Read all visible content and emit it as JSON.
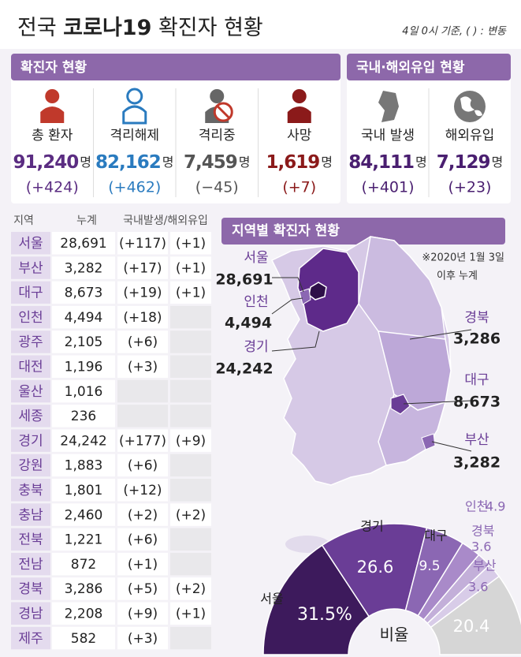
{
  "header": {
    "title_pre": "전국",
    "title_bold": "코로나19",
    "title_post": "확진자 현황",
    "subtitle": "4일 0시 기준, ( ) : 변동"
  },
  "summary": {
    "unit": "명",
    "panels": [
      {
        "title": "확진자 현황",
        "items": [
          {
            "label": "총 환자",
            "value": "91,240",
            "change": "(+424)",
            "color": "#5b2d82"
          },
          {
            "label": "격리해제",
            "value": "82,162",
            "change": "(+462)",
            "color": "#2a7bbf"
          },
          {
            "label": "격리중",
            "value": "7,459",
            "change": "(−45)",
            "color": "#555555"
          },
          {
            "label": "사망",
            "value": "1,619",
            "change": "(+7)",
            "color": "#8b1a1a"
          }
        ]
      },
      {
        "title": "국내·해외유입 현황",
        "items": [
          {
            "label": "국내 발생",
            "value": "84,111",
            "change": "(+401)",
            "color": "#4a1f70"
          },
          {
            "label": "해외유입",
            "value": "7,129",
            "change": "(+23)",
            "color": "#4a1f70"
          }
        ]
      }
    ]
  },
  "table": {
    "headers": [
      "지역",
      "누계",
      "국내발생/해외유입"
    ],
    "rows": [
      [
        "서울",
        "28,691",
        "(+117)",
        "(+1)"
      ],
      [
        "부산",
        "3,282",
        "(+17)",
        "(+1)"
      ],
      [
        "대구",
        "8,673",
        "(+19)",
        "(+1)"
      ],
      [
        "인천",
        "4,494",
        "(+18)",
        null
      ],
      [
        "광주",
        "2,105",
        "(+6)",
        null
      ],
      [
        "대전",
        "1,196",
        "(+3)",
        null
      ],
      [
        "울산",
        "1,016",
        null,
        null
      ],
      [
        "세종",
        "236",
        null,
        null
      ],
      [
        "경기",
        "24,242",
        "(+177)",
        "(+9)"
      ],
      [
        "강원",
        "1,883",
        "(+6)",
        null
      ],
      [
        "충북",
        "1,801",
        "(+12)",
        null
      ],
      [
        "충남",
        "2,460",
        "(+2)",
        "(+2)"
      ],
      [
        "전북",
        "1,221",
        "(+6)",
        null
      ],
      [
        "전남",
        "872",
        "(+1)",
        null
      ],
      [
        "경북",
        "3,286",
        "(+5)",
        "(+2)"
      ],
      [
        "경남",
        "2,208",
        "(+9)",
        "(+1)"
      ],
      [
        "제주",
        "582",
        "(+3)",
        null
      ]
    ]
  },
  "map": {
    "title": "지역별 확진자 현황",
    "note_line1": "※2020년 1월 3일",
    "note_line2": "이후 누계",
    "labels": [
      {
        "name": "서울",
        "value": "28,691"
      },
      {
        "name": "인천",
        "value": "4,494"
      },
      {
        "name": "경기",
        "value": "24,242"
      },
      {
        "name": "경북",
        "value": "3,286"
      },
      {
        "name": "대구",
        "value": "8,673"
      },
      {
        "name": "부산",
        "value": "3,282"
      }
    ]
  },
  "chart_data": {
    "type": "pie",
    "center_label": "비율",
    "categories": [
      "서울",
      "경기",
      "대구",
      "인천",
      "경북",
      "부산",
      null
    ],
    "values": [
      31.5,
      26.6,
      9.5,
      4.9,
      3.6,
      3.6,
      20.4
    ],
    "value_labels": [
      "31.5%",
      null,
      null,
      null,
      null,
      null,
      null
    ],
    "colors": [
      "#3d1a5c",
      "#6a3d96",
      "#8b67b3",
      "#a98ac9",
      "#c3afd9",
      "#d8cce8",
      "#d6d6d6"
    ]
  }
}
